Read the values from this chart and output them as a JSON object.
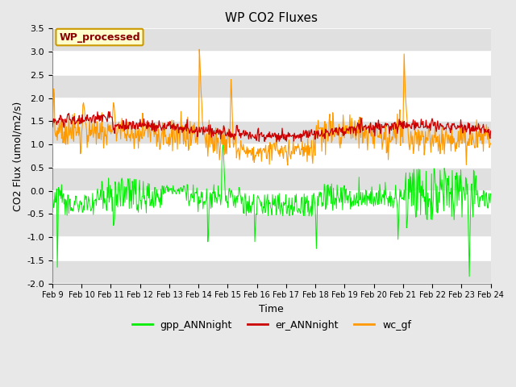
{
  "title": "WP CO2 Fluxes",
  "xlabel": "Time",
  "ylabel": "CO2 Flux (umol/m2/s)",
  "xlim_days": [
    9,
    24
  ],
  "ylim": [
    -2.0,
    3.5
  ],
  "yticks": [
    -2.0,
    -1.5,
    -1.0,
    -0.5,
    0.0,
    0.5,
    1.0,
    1.5,
    2.0,
    2.5,
    3.0,
    3.5
  ],
  "xtick_labels": [
    "Feb 9",
    "Feb 10",
    "Feb 11",
    "Feb 12",
    "Feb 13",
    "Feb 14",
    "Feb 15",
    "Feb 16",
    "Feb 17",
    "Feb 18",
    "Feb 19",
    "Feb 20",
    "Feb 21",
    "Feb 22",
    "Feb 23",
    "Feb 24"
  ],
  "legend_labels": [
    "gpp_ANNnight",
    "er_ANNnight",
    "wc_gf"
  ],
  "line_colors": [
    "#00ee00",
    "#cc0000",
    "#ff9900"
  ],
  "fig_bg_color": "#e8e8e8",
  "plot_bg_color": "#ffffff",
  "band_color": "#e0e0e0",
  "annotation_text": "WP_processed",
  "annotation_bg": "#ffffcc",
  "annotation_border": "#cc9900",
  "annotation_text_color": "#880000",
  "title_fontsize": 11,
  "axis_label_fontsize": 9,
  "tick_fontsize": 8,
  "legend_fontsize": 9
}
